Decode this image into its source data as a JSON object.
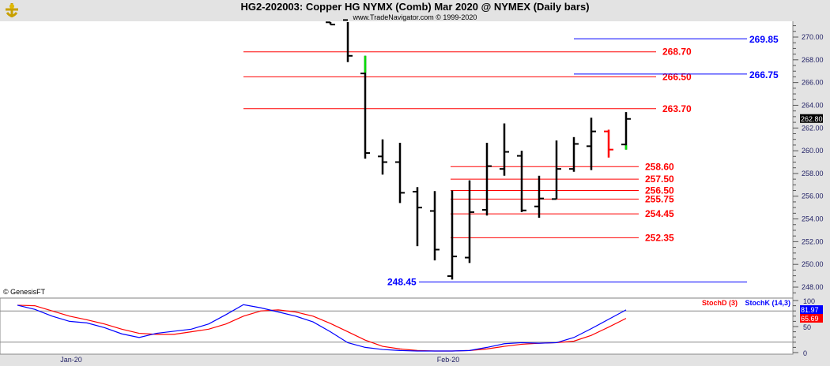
{
  "header": {
    "title": "HG2-202003:  Copper HG NYMX (Comb) Mar 2020 @ NYMEX  (Daily bars)",
    "subtitle": "www.TradeNavigator.com © 1999-2020",
    "logo_icon": "sextant-logo-icon"
  },
  "copyright": "© GenesisFT",
  "colors": {
    "up_bar": "#000000",
    "down_bar": "#ff0000",
    "resistance": "#ff0000",
    "blue_level": "#0000ff",
    "stochK": "#0000ff",
    "stochD": "#ff0000"
  },
  "price_axis": {
    "ticks": [
      "270.00",
      "268.00",
      "266.00",
      "264.00",
      "262.00",
      "260.00",
      "258.00",
      "256.00",
      "254.00",
      "252.00",
      "250.00",
      "248.00"
    ],
    "last_price": "262.80",
    "range": [
      247.5,
      271.5
    ]
  },
  "levels_red": [
    {
      "value": "268.70",
      "wide": true
    },
    {
      "value": "266.50",
      "wide": true
    },
    {
      "value": "263.70",
      "wide": true
    },
    {
      "value": "258.60",
      "wide": false
    },
    {
      "value": "257.50",
      "wide": false
    },
    {
      "value": "256.50",
      "wide": false
    },
    {
      "value": "255.75",
      "wide": false
    },
    {
      "value": "254.45",
      "wide": false
    },
    {
      "value": "252.35",
      "wide": false
    }
  ],
  "levels_blue": [
    {
      "value": "269.85",
      "side": "right"
    },
    {
      "value": "266.75",
      "side": "right"
    },
    {
      "value": "248.45",
      "side": "left"
    }
  ],
  "bars": [
    {
      "o": 271.3,
      "h": 271.4,
      "l": 271.1,
      "c": 271.1
    },
    {
      "o": 271.5,
      "h": 271.6,
      "l": 267.8,
      "c": 268.35
    },
    {
      "o": 266.8,
      "h": 268.35,
      "l": 259.3,
      "c": 259.8,
      "green_top": true
    },
    {
      "o": 259.5,
      "h": 261.0,
      "l": 257.9,
      "c": 259.0
    },
    {
      "o": 259.0,
      "h": 260.7,
      "l": 255.4,
      "c": 256.3
    },
    {
      "o": 256.4,
      "h": 256.8,
      "l": 251.6,
      "c": 255.0
    },
    {
      "o": 254.7,
      "h": 256.45,
      "l": 250.35,
      "c": 251.3
    },
    {
      "o": 248.97,
      "h": 256.5,
      "l": 248.67,
      "c": 250.7
    },
    {
      "o": 250.6,
      "h": 257.4,
      "l": 250.13,
      "c": 254.6
    },
    {
      "o": 254.8,
      "h": 260.7,
      "l": 254.3,
      "c": 258.65
    },
    {
      "o": 258.4,
      "h": 262.4,
      "l": 257.8,
      "c": 259.9
    },
    {
      "o": 259.55,
      "h": 260.0,
      "l": 254.6,
      "c": 254.75
    },
    {
      "o": 255.1,
      "h": 257.8,
      "l": 254.1,
      "c": 255.8
    },
    {
      "o": 255.75,
      "h": 260.9,
      "l": 255.75,
      "c": 258.4
    },
    {
      "o": 258.4,
      "h": 261.2,
      "l": 258.15,
      "c": 260.6
    },
    {
      "o": 260.4,
      "h": 262.9,
      "l": 258.3,
      "c": 261.7
    },
    {
      "o": 261.7,
      "h": 261.85,
      "l": 259.4,
      "c": 260.1,
      "red": true
    },
    {
      "o": 260.55,
      "h": 263.4,
      "l": 260.1,
      "c": 262.8,
      "green_bottom": true
    }
  ],
  "stoch": {
    "legend_d": "StochD (3)",
    "legend_k": "StochK (14,3)",
    "k_value": "81.97",
    "d_value": "65.69",
    "ticks": [
      "100",
      "50",
      "0"
    ],
    "k": [
      91,
      83,
      70,
      60,
      57,
      48,
      36,
      29,
      37,
      41,
      45,
      55,
      73,
      92,
      86,
      78,
      70,
      59,
      40,
      19,
      10,
      6,
      4,
      3,
      3,
      3,
      4,
      10,
      17,
      19,
      18,
      19,
      29,
      46,
      64,
      81.97
    ],
    "d": [
      91,
      90,
      80,
      70,
      63,
      55,
      45,
      37,
      35,
      35,
      40,
      45,
      55,
      70,
      80,
      82,
      78,
      70,
      56,
      40,
      24,
      12,
      7,
      4,
      3,
      3,
      4,
      7,
      12,
      16,
      18,
      19,
      22,
      33,
      49,
      65.69
    ],
    "levels": [
      80,
      20
    ]
  },
  "date_axis": [
    "Jan-20",
    "Feb-20"
  ]
}
